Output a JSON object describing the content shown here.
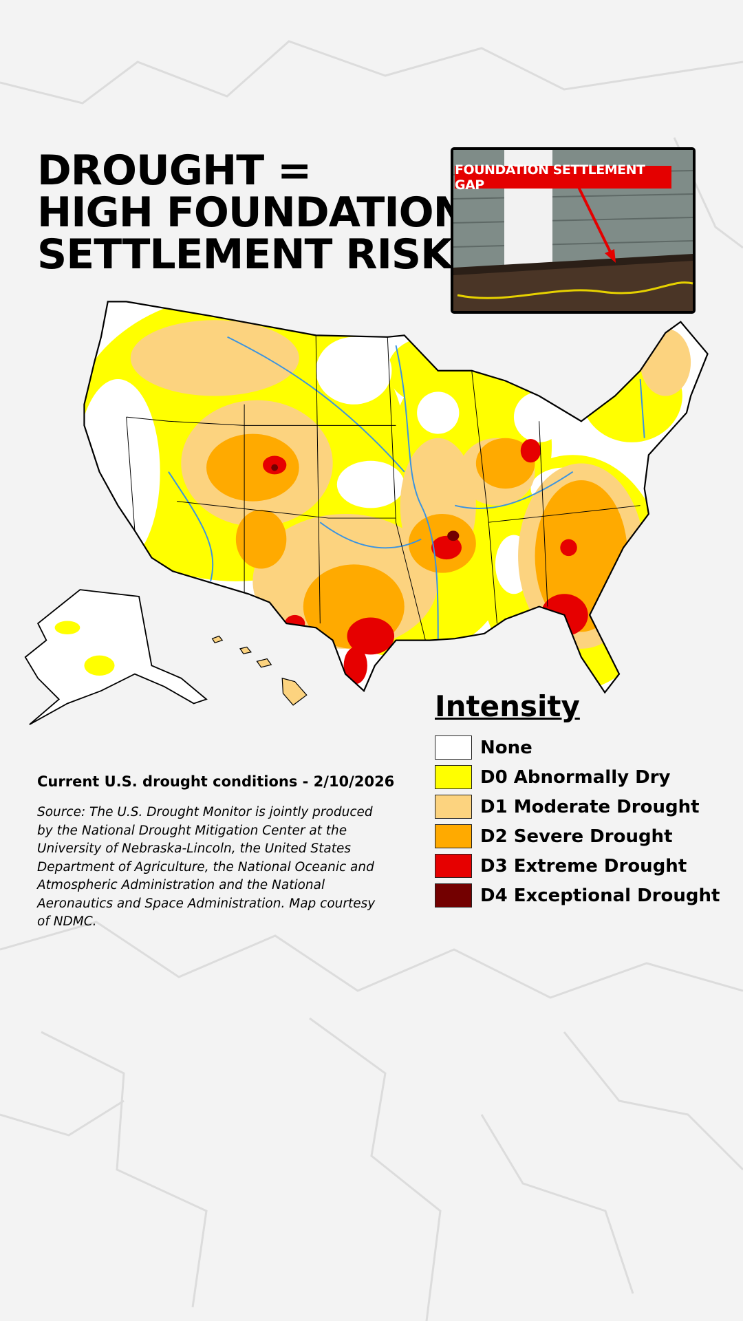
{
  "header": {
    "title": [
      "DROUGHT =",
      "HIGH FOUNDATION",
      "SETTLEMENT RISK"
    ]
  },
  "inset": {
    "label": "FOUNDATION SETTLEMENT GAP"
  },
  "caption": "Current U.S. drought conditions - 2/10/2026",
  "source": "Source: The U.S. Drought Monitor is jointly produced by the National Drought Mitigation Center at the University of Nebraska-Lincoln, the United States Department of Agriculture, the National Oceanic and Atmospheric Administration and the National Aeronautics and Space Administration. Map courtesy of NDMC.",
  "legend": {
    "title": "Intensity",
    "items": [
      {
        "label": "None",
        "color": "#ffffff"
      },
      {
        "label": "D0 Abnormally Dry",
        "color": "#ffff00"
      },
      {
        "label": "D1 Moderate Drought",
        "color": "#fcd37f"
      },
      {
        "label": "D2 Severe Drought",
        "color": "#ffaa00"
      },
      {
        "label": "D3 Extreme Drought",
        "color": "#e60000"
      },
      {
        "label": "D4 Exceptional Drought",
        "color": "#730000"
      }
    ]
  }
}
